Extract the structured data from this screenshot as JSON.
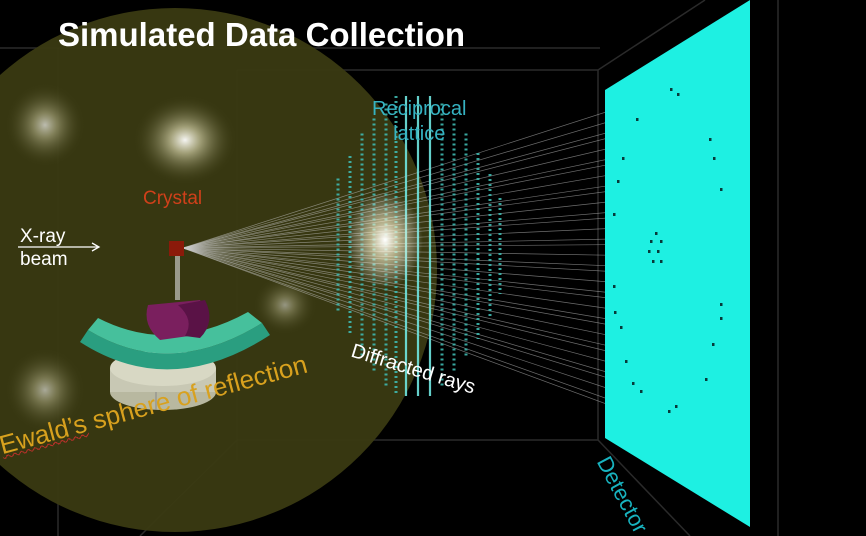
{
  "title": "Simulated Data Collection",
  "labels": {
    "reciprocal_line1": "Reciprocal",
    "reciprocal_line2": "lattice",
    "crystal": "Crystal",
    "xray_line1": "X-ray",
    "xray_line2": "beam",
    "diffracted_rays": "Diffracted rays",
    "ewald_word": "Ewald’s",
    "ewald_rest": " sphere of reflection",
    "detector": "Detector"
  },
  "colors": {
    "background": "#000000",
    "sphere": "#3a3a12",
    "lattice": "#3fb8b0",
    "detector_panel": "#1ef0e2",
    "crystal": "#8b1a0a",
    "goniometer_arc": "#2a9e80",
    "mount": "#7a1f5e",
    "base": "#c8c8b4",
    "rays": "#c8c8c8"
  }
}
